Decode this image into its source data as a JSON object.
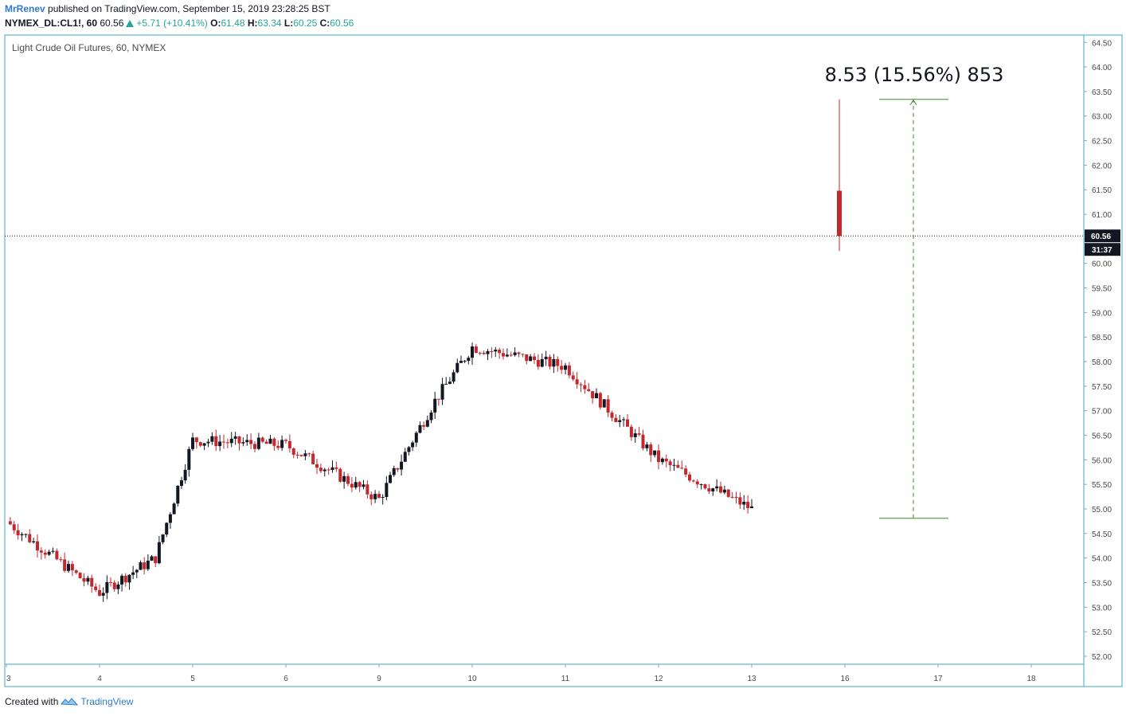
{
  "header": {
    "author": "MrRenev",
    "published_text": "published on TradingView.com, September 15, 2019 23:28:25 BST",
    "symbol": "NYMEX_DL:CL1!, 60",
    "last": "60.56",
    "change": "+5.71 (+10.41%)",
    "o_label": "O:",
    "o_value": "61.48",
    "h_label": "H:",
    "h_value": "63.34",
    "l_label": "L:",
    "l_value": "60.25",
    "c_label": "C:",
    "c_value": "60.56"
  },
  "colors": {
    "up": "#131722",
    "down": "#c2282d",
    "measure": "#3a8a2a",
    "axis_text": "#4a4a4a",
    "brand": "#2e7bcf",
    "border": "#3aa8c8"
  },
  "footer": {
    "created_with": "Created with",
    "brand": "TradingView",
    "logo_icon": "tradingview-logo-icon"
  },
  "chart_data": {
    "type": "candlestick",
    "title": "Light Crude Oil Futures, 60, NYMEX",
    "ylim": [
      51.85,
      64.65
    ],
    "y_ticks": [
      "52.00",
      "52.50",
      "53.00",
      "53.50",
      "54.00",
      "54.50",
      "55.00",
      "55.50",
      "56.00",
      "56.50",
      "57.00",
      "57.50",
      "58.00",
      "58.50",
      "59.00",
      "59.50",
      "60.00",
      "60.50",
      "61.00",
      "61.50",
      "62.00",
      "62.50",
      "63.00",
      "63.50",
      "64.00",
      "64.50"
    ],
    "x_ticks": [
      "3",
      "4",
      "5",
      "6",
      "9",
      "10",
      "11",
      "12",
      "13",
      "16",
      "17",
      "18"
    ],
    "last_price_label": "60.56",
    "countdown_label": "31:37",
    "last_price": 60.56,
    "measure": {
      "label": "8.53 (15.56%) 853",
      "from": 54.81,
      "to": 63.34
    },
    "key_points": [
      {
        "x_label": "3",
        "price": 54.75
      },
      {
        "x_label": "4",
        "price": 53.3
      },
      {
        "x_label": "4",
        "price": 54.0
      },
      {
        "x_label": "5",
        "price": 56.4
      },
      {
        "x_label": "6",
        "price": 56.3
      },
      {
        "x_label": "9",
        "price": 55.2
      },
      {
        "x_label": "9",
        "price": 57.2
      },
      {
        "x_label": "10",
        "price": 58.3
      },
      {
        "x_label": "11",
        "price": 57.9
      },
      {
        "x_label": "12",
        "price": 56.0
      },
      {
        "x_label": "13",
        "price": 55.0
      },
      {
        "x_label": "16",
        "price": 60.56
      }
    ],
    "final_candle": {
      "open": 61.48,
      "high": 63.34,
      "low": 60.25,
      "close": 60.56
    }
  }
}
